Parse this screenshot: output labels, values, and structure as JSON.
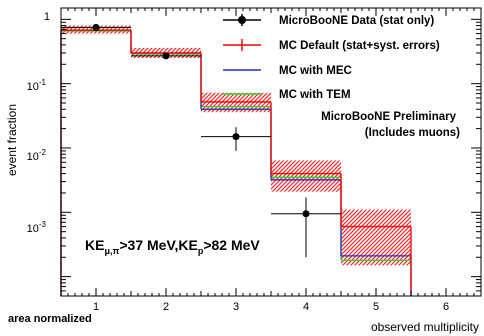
{
  "chart_data": {
    "type": "line",
    "title": "",
    "xlabel": "observed multiplicity",
    "ylabel": "event fraction",
    "footnote": "area normalized",
    "log_y": true,
    "xlim": [
      0.5,
      6.5
    ],
    "ylim": [
      5e-05,
      1.5
    ],
    "x_ticks": [
      "1",
      "2",
      "3",
      "4",
      "5",
      "6"
    ],
    "y_ticks": [
      {
        "base": "1",
        "exp": ""
      },
      {
        "base": "10",
        "exp": "-1"
      },
      {
        "base": "10",
        "exp": "-2"
      },
      {
        "base": "10",
        "exp": "-3"
      }
    ],
    "bins": [
      1,
      2,
      3,
      4,
      5
    ],
    "series": [
      {
        "name": "MicroBooNE Data (stat only)",
        "style": "points",
        "color": "#000000",
        "values": [
          0.75,
          0.27,
          0.015,
          0.00095,
          null
        ],
        "err_low": [
          0.02,
          0.015,
          0.006,
          0.00075,
          null
        ],
        "err_high": [
          0.02,
          0.015,
          0.006,
          0.00075,
          null
        ]
      },
      {
        "name": "MC Default (stat+syst. errors)",
        "style": "hist",
        "color": "#ff0000",
        "values": [
          0.68,
          0.3,
          0.052,
          0.004,
          0.0006
        ],
        "band_low": [
          0.6,
          0.25,
          0.036,
          0.0021,
          0.00015
        ],
        "band_high": [
          0.8,
          0.36,
          0.072,
          0.0064,
          0.0011
        ]
      },
      {
        "name": "MC with MEC",
        "style": "hist",
        "color": "#2b2bb8",
        "values": [
          0.68,
          0.3,
          0.04,
          0.0032,
          0.00021
        ]
      },
      {
        "name": "MC with TEM",
        "style": "hist",
        "color": "#33cc33",
        "values": [
          0.66,
          0.29,
          0.044,
          0.0035,
          0.00018
        ]
      }
    ],
    "annotations": {
      "preliminary_line1": "MicroBooNE Preliminary",
      "preliminary_line2": "(Includes muons)",
      "cut_ke": "KE",
      "cut_mu_pi": "μ,π",
      "cut_mid": ">37 MeV,KE",
      "cut_p": "p",
      "cut_end": ">82 MeV"
    }
  }
}
